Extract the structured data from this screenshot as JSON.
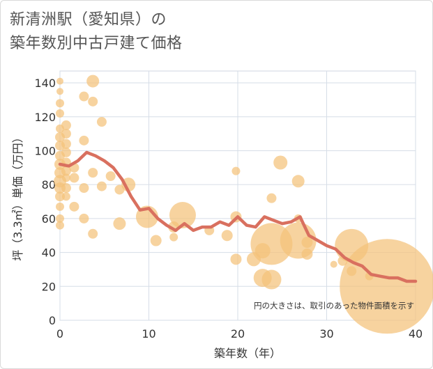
{
  "title_line1": "新清洲駅（愛知県）の",
  "title_line2": "築年数別中古戸建て価格",
  "chart_data": {
    "type": "scatter",
    "title": "新清洲駅（愛知県）の 築年数別中古戸建て価格",
    "xlabel": "築年数（年）",
    "ylabel": "坪（3.3㎡）単価（万円）",
    "xlim": [
      0,
      40
    ],
    "ylim": [
      0,
      147
    ],
    "xticks": [
      0,
      10,
      20,
      30,
      40
    ],
    "yticks": [
      0,
      20,
      40,
      60,
      80,
      100,
      120,
      140
    ],
    "grid": true,
    "note": "円の大きさは、取引のあった物件面積を示す",
    "bubble_color": "#f4c27a",
    "line_color": "#d9705f",
    "bubbles": [
      {
        "x": 0,
        "y": 141,
        "s": 5
      },
      {
        "x": 0,
        "y": 135,
        "s": 5
      },
      {
        "x": 0,
        "y": 128,
        "s": 6
      },
      {
        "x": 0,
        "y": 122,
        "s": 6
      },
      {
        "x": 0,
        "y": 113,
        "s": 6
      },
      {
        "x": 0,
        "y": 108,
        "s": 7
      },
      {
        "x": 0,
        "y": 103,
        "s": 7
      },
      {
        "x": 0,
        "y": 97,
        "s": 7
      },
      {
        "x": 0,
        "y": 92,
        "s": 8
      },
      {
        "x": 0,
        "y": 87,
        "s": 8
      },
      {
        "x": 0,
        "y": 82,
        "s": 9
      },
      {
        "x": 0,
        "y": 78,
        "s": 8
      },
      {
        "x": 0,
        "y": 73,
        "s": 7
      },
      {
        "x": 0,
        "y": 67,
        "s": 6
      },
      {
        "x": 0,
        "y": 60,
        "s": 6
      },
      {
        "x": 0,
        "y": 56,
        "s": 6
      },
      {
        "x": 0.7,
        "y": 115,
        "s": 7
      },
      {
        "x": 0.7,
        "y": 110,
        "s": 7
      },
      {
        "x": 0.7,
        "y": 104,
        "s": 7
      },
      {
        "x": 0.7,
        "y": 99,
        "s": 7
      },
      {
        "x": 0.7,
        "y": 93,
        "s": 7
      },
      {
        "x": 0.7,
        "y": 88,
        "s": 7
      },
      {
        "x": 0.7,
        "y": 84,
        "s": 6
      },
      {
        "x": 0.7,
        "y": 78,
        "s": 7
      },
      {
        "x": 0.7,
        "y": 73,
        "s": 6
      },
      {
        "x": 1.6,
        "y": 90,
        "s": 7
      },
      {
        "x": 1.6,
        "y": 84,
        "s": 7
      },
      {
        "x": 1.6,
        "y": 67,
        "s": 7
      },
      {
        "x": 2.7,
        "y": 132,
        "s": 7
      },
      {
        "x": 2.7,
        "y": 106,
        "s": 7
      },
      {
        "x": 2.7,
        "y": 78,
        "s": 7
      },
      {
        "x": 2.7,
        "y": 60,
        "s": 7
      },
      {
        "x": 3.7,
        "y": 141,
        "s": 9
      },
      {
        "x": 3.7,
        "y": 129,
        "s": 7
      },
      {
        "x": 3.7,
        "y": 87,
        "s": 7
      },
      {
        "x": 3.7,
        "y": 51,
        "s": 7
      },
      {
        "x": 4.7,
        "y": 117,
        "s": 7
      },
      {
        "x": 4.7,
        "y": 79,
        "s": 7
      },
      {
        "x": 5.7,
        "y": 85,
        "s": 7
      },
      {
        "x": 6.7,
        "y": 77,
        "s": 7
      },
      {
        "x": 6.7,
        "y": 57,
        "s": 9
      },
      {
        "x": 7.7,
        "y": 80,
        "s": 10
      },
      {
        "x": 9.8,
        "y": 61,
        "s": 16
      },
      {
        "x": 10.8,
        "y": 47,
        "s": 8
      },
      {
        "x": 12.8,
        "y": 55,
        "s": 8
      },
      {
        "x": 12.8,
        "y": 49,
        "s": 6
      },
      {
        "x": 13.8,
        "y": 62,
        "s": 19
      },
      {
        "x": 16.8,
        "y": 53,
        "s": 7
      },
      {
        "x": 18.8,
        "y": 50,
        "s": 8
      },
      {
        "x": 19.8,
        "y": 88,
        "s": 6
      },
      {
        "x": 19.8,
        "y": 61,
        "s": 8
      },
      {
        "x": 19.8,
        "y": 36,
        "s": 8
      },
      {
        "x": 21.8,
        "y": 36,
        "s": 10
      },
      {
        "x": 22.8,
        "y": 41,
        "s": 11
      },
      {
        "x": 22.8,
        "y": 25,
        "s": 13
      },
      {
        "x": 23.8,
        "y": 72,
        "s": 7
      },
      {
        "x": 23.8,
        "y": 45,
        "s": 30
      },
      {
        "x": 23.8,
        "y": 24,
        "s": 14
      },
      {
        "x": 24.8,
        "y": 93,
        "s": 10
      },
      {
        "x": 26.8,
        "y": 82,
        "s": 9
      },
      {
        "x": 26.8,
        "y": 60,
        "s": 6
      },
      {
        "x": 26.8,
        "y": 47,
        "s": 26
      },
      {
        "x": 27.8,
        "y": 46,
        "s": 8
      },
      {
        "x": 27.8,
        "y": 39,
        "s": 8
      },
      {
        "x": 30.8,
        "y": 33,
        "s": 5
      },
      {
        "x": 31.8,
        "y": 35,
        "s": 7
      },
      {
        "x": 32.8,
        "y": 44,
        "s": 24
      },
      {
        "x": 32.8,
        "y": 29,
        "s": 7
      },
      {
        "x": 34.8,
        "y": 26,
        "s": 6
      },
      {
        "x": 36.8,
        "y": 20,
        "s": 68
      }
    ],
    "trend_x": [
      0,
      1,
      2,
      3,
      4,
      5,
      6,
      7,
      8,
      9,
      10,
      11,
      12,
      13,
      14,
      15,
      16,
      17,
      18,
      19,
      20,
      21,
      22,
      23,
      24,
      25,
      26,
      27,
      28,
      29,
      30,
      31,
      32,
      33,
      34,
      35,
      36,
      37,
      38,
      39,
      40
    ],
    "trend_y": [
      92,
      91,
      94,
      99,
      97,
      94,
      90,
      83,
      73,
      65,
      66,
      60,
      56,
      53,
      57,
      53,
      55,
      55,
      58,
      56,
      61,
      56,
      55,
      61,
      59,
      57,
      58,
      61,
      50,
      47,
      44,
      42,
      37,
      34,
      32,
      27,
      26,
      25,
      25,
      23,
      23
    ]
  }
}
